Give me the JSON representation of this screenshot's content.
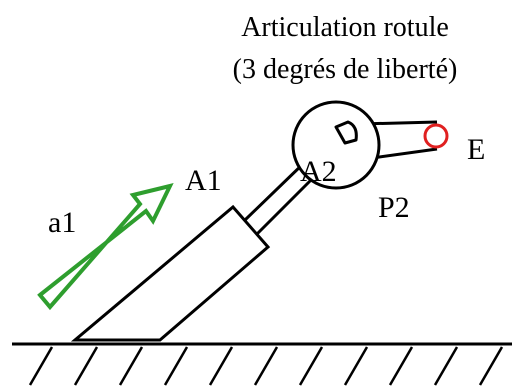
{
  "title": {
    "line1": "Articulation rotule",
    "line2": "(3 degrés de liberté)"
  },
  "labels": {
    "a1": "a1",
    "A1": "A1",
    "A2": "A2",
    "P2": "P2",
    "E": "E"
  },
  "colors": {
    "stroke": "#000000",
    "arrow": "#2e9e2e",
    "end_effector": "#e02020",
    "background": "#ffffff"
  }
}
